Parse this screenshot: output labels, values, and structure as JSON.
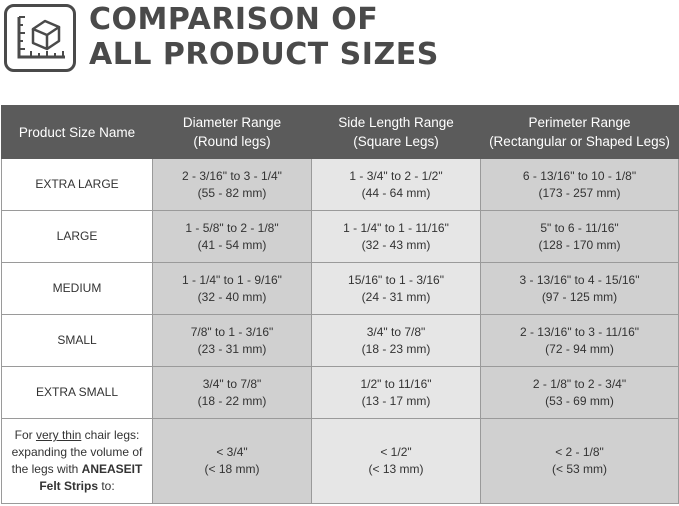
{
  "header": {
    "title_line1": "COMPARISON OF",
    "title_line2": "ALL PRODUCT SIZES",
    "logo_icon": "ruler-box-icon"
  },
  "table": {
    "headers": [
      {
        "line1": "Product Size Name",
        "line2": ""
      },
      {
        "line1": "Diameter Range",
        "line2": "(Round legs)"
      },
      {
        "line1": "Side Length Range",
        "line2": "(Square Legs)"
      },
      {
        "line1": "Perimeter Range",
        "line2": "(Rectangular or Shaped Legs)"
      }
    ],
    "rows": [
      {
        "name": "EXTRA LARGE",
        "diameter": [
          "2 - 3/16\" to 3 - 1/4\"",
          "(55 - 82 mm)"
        ],
        "side": [
          "1 - 3/4\" to 2 - 1/2\"",
          "(44 - 64 mm)"
        ],
        "perimeter": [
          "6 - 13/16\" to 10 - 1/8\"",
          "(173 - 257 mm)"
        ]
      },
      {
        "name": "LARGE",
        "diameter": [
          "1 - 5/8\" to 2 - 1/8\"",
          "(41 - 54 mm)"
        ],
        "side": [
          "1 - 1/4\" to 1 - 11/16\"",
          "(32 - 43 mm)"
        ],
        "perimeter": [
          "5\" to 6 - 11/16\"",
          "(128 - 170 mm)"
        ]
      },
      {
        "name": "MEDIUM",
        "diameter": [
          "1 - 1/4\" to 1 - 9/16\"",
          "(32 - 40 mm)"
        ],
        "side": [
          "15/16\" to 1 - 3/16\"",
          "(24 - 31 mm)"
        ],
        "perimeter": [
          "3 - 13/16\" to 4 - 15/16\"",
          "(97 - 125 mm)"
        ]
      },
      {
        "name": "SMALL",
        "diameter": [
          "7/8\" to  1 - 3/16\"",
          "(23 - 31 mm)"
        ],
        "side": [
          "3/4\" to 7/8\"",
          "(18 - 23 mm)"
        ],
        "perimeter": [
          "2 - 13/16\" to 3 - 11/16\"",
          "(72 - 94 mm)"
        ]
      },
      {
        "name": "EXTRA SMALL",
        "diameter": [
          "3/4\" to 7/8\"",
          "(18 - 22 mm)"
        ],
        "side": [
          "1/2\" to 11/16\"",
          "(13 - 17 mm)"
        ],
        "perimeter": [
          "2 - 1/8\" to 2 - 3/4\"",
          "(53 - 69 mm)"
        ]
      }
    ],
    "note_row": {
      "text_prefix": "For ",
      "text_underlined": "very thin",
      "text_mid": " chair legs: expanding the volume of the legs with ",
      "text_bold": "ANEASEIT Felt Strips",
      "text_suffix": " to:",
      "diameter": [
        "< 3/4\"",
        "(< 18 mm)"
      ],
      "side": [
        "< 1/2\"",
        "(< 13 mm)"
      ],
      "perimeter": [
        "< 2 - 1/8\"",
        "(< 53 mm)"
      ]
    }
  },
  "colors": {
    "header_bg": "#5b5b5b",
    "title_text": "#4a4a4a",
    "cell_dark": "#d0d0d0",
    "cell_light": "#e6e6e6"
  }
}
